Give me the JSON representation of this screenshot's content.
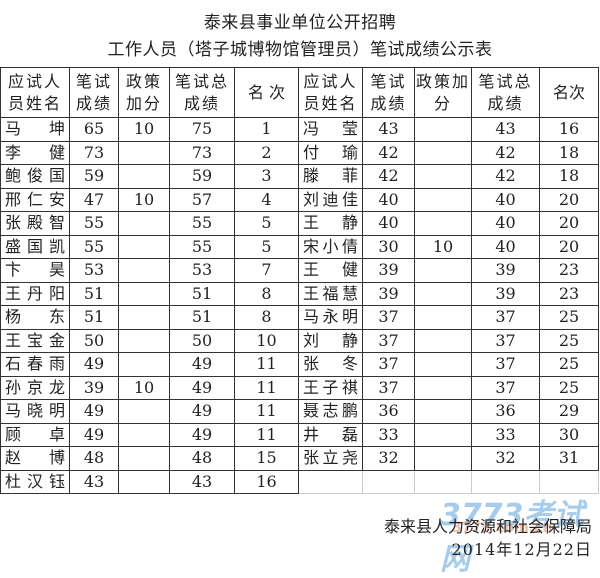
{
  "title_line1": "泰来县事业单位公开招聘",
  "title_line2": "工作人员（塔子城博物馆管理员）笔试成绩公示表",
  "headers": [
    "应试人员姓名",
    "笔试成绩",
    "政策加分",
    "笔试总成绩",
    "名 次",
    "应试人员姓名",
    "笔试成绩",
    "政策加分",
    "笔试总成绩",
    "名次"
  ],
  "left_rows": [
    {
      "name": "马坤",
      "score": "65",
      "bonus": "10",
      "total": "75",
      "rank": "1"
    },
    {
      "name": "李健",
      "score": "73",
      "bonus": "",
      "total": "73",
      "rank": "2"
    },
    {
      "name": "鲍俊国",
      "score": "59",
      "bonus": "",
      "total": "59",
      "rank": "3"
    },
    {
      "name": "邢仁安",
      "score": "47",
      "bonus": "10",
      "total": "57",
      "rank": "4"
    },
    {
      "name": "张殿智",
      "score": "55",
      "bonus": "",
      "total": "55",
      "rank": "5"
    },
    {
      "name": "盛国凯",
      "score": "55",
      "bonus": "",
      "total": "55",
      "rank": "5"
    },
    {
      "name": "卞昊",
      "score": "53",
      "bonus": "",
      "total": "53",
      "rank": "7"
    },
    {
      "name": "王丹阳",
      "score": "51",
      "bonus": "",
      "total": "51",
      "rank": "8"
    },
    {
      "name": "杨东",
      "score": "51",
      "bonus": "",
      "total": "51",
      "rank": "8"
    },
    {
      "name": "王宝金",
      "score": "50",
      "bonus": "",
      "total": "50",
      "rank": "10"
    },
    {
      "name": "石春雨",
      "score": "49",
      "bonus": "",
      "total": "49",
      "rank": "11"
    },
    {
      "name": "孙京龙",
      "score": "39",
      "bonus": "10",
      "total": "49",
      "rank": "11"
    },
    {
      "name": "马晓明",
      "score": "49",
      "bonus": "",
      "total": "49",
      "rank": "11"
    },
    {
      "name": "顾卓",
      "score": "49",
      "bonus": "",
      "total": "49",
      "rank": "11"
    },
    {
      "name": "赵博",
      "score": "48",
      "bonus": "",
      "total": "48",
      "rank": "15"
    },
    {
      "name": "杜汉钰",
      "score": "43",
      "bonus": "",
      "total": "43",
      "rank": "16"
    }
  ],
  "right_rows": [
    {
      "name": "冯莹",
      "score": "43",
      "bonus": "",
      "total": "43",
      "rank": "16"
    },
    {
      "name": "付瑜",
      "score": "42",
      "bonus": "",
      "total": "42",
      "rank": "18"
    },
    {
      "name": "滕菲",
      "score": "42",
      "bonus": "",
      "total": "42",
      "rank": "18"
    },
    {
      "name": "刘迪佳",
      "score": "40",
      "bonus": "",
      "total": "40",
      "rank": "20"
    },
    {
      "name": "王静",
      "score": "40",
      "bonus": "",
      "total": "40",
      "rank": "20"
    },
    {
      "name": "宋小倩",
      "score": "30",
      "bonus": "10",
      "total": "40",
      "rank": "20"
    },
    {
      "name": "王健",
      "score": "39",
      "bonus": "",
      "total": "39",
      "rank": "23"
    },
    {
      "name": "王福慧",
      "score": "39",
      "bonus": "",
      "total": "39",
      "rank": "23"
    },
    {
      "name": "马永明",
      "score": "37",
      "bonus": "",
      "total": "37",
      "rank": "25"
    },
    {
      "name": "刘静",
      "score": "37",
      "bonus": "",
      "total": "37",
      "rank": "25"
    },
    {
      "name": "张冬",
      "score": "37",
      "bonus": "",
      "total": "37",
      "rank": "25"
    },
    {
      "name": "王子祺",
      "score": "37",
      "bonus": "",
      "total": "37",
      "rank": "25"
    },
    {
      "name": "聂志鹏",
      "score": "36",
      "bonus": "",
      "total": "36",
      "rank": "29"
    },
    {
      "name": "井磊",
      "score": "33",
      "bonus": "",
      "total": "33",
      "rank": "30"
    },
    {
      "name": "张立尧",
      "score": "32",
      "bonus": "",
      "total": "32",
      "rank": "31"
    }
  ],
  "footer_org": "泰来县人力资源和社会保障局",
  "footer_date": "2014年12月22日",
  "watermark": {
    "logo": "3773考试网",
    "url": "3773.com.cn",
    "colors": {
      "logo": "#3b8fd8",
      "url": "#e0703a"
    }
  }
}
